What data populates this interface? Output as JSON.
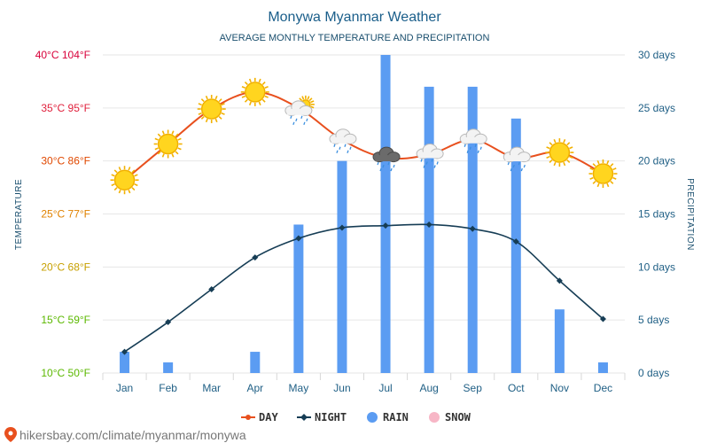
{
  "title": "Monywa Myanmar Weather",
  "subtitle": "AVERAGE MONTHLY TEMPERATURE AND PRECIPITATION",
  "source": "hikersbay.com/climate/myanmar/monywa",
  "colors": {
    "day": "#e8501e",
    "night": "#163d55",
    "rain": "#5b9cf2",
    "snow": "#f7b6c6",
    "grid": "#e6e6e6",
    "left_ticks": [
      "#5bb800",
      "#5bb800",
      "#c7a000",
      "#e08200",
      "#e04800",
      "#e0203c",
      "#d8003a"
    ]
  },
  "chart_data": {
    "type": "line+bar",
    "title": "Monywa Myanmar Weather",
    "subtitle": "AVERAGE MONTHLY TEMPERATURE AND PRECIPITATION",
    "categories": [
      "Jan",
      "Feb",
      "Mar",
      "Apr",
      "May",
      "Jun",
      "Jul",
      "Aug",
      "Sep",
      "Oct",
      "Nov",
      "Dec"
    ],
    "series": [
      {
        "name": "DAY",
        "type": "line",
        "axis": "left",
        "values": [
          28.2,
          31.6,
          34.9,
          36.5,
          35.0,
          32.0,
          30.3,
          30.6,
          32.0,
          30.3,
          30.8,
          28.8
        ]
      },
      {
        "name": "NIGHT",
        "type": "line",
        "axis": "left",
        "values": [
          12.0,
          14.8,
          17.9,
          20.9,
          22.7,
          23.7,
          23.9,
          24.0,
          23.6,
          22.4,
          18.7,
          15.1
        ]
      },
      {
        "name": "RAIN",
        "type": "bar",
        "axis": "right",
        "values": [
          2,
          1,
          0,
          2,
          14,
          20,
          30,
          27,
          27,
          24,
          6,
          1
        ]
      },
      {
        "name": "SNOW",
        "type": "bar",
        "axis": "right",
        "values": [
          0,
          0,
          0,
          0,
          0,
          0,
          0,
          0,
          0,
          0,
          0,
          0
        ]
      }
    ],
    "weather_icons": [
      "sun",
      "sun",
      "sun",
      "sun",
      "sun-cloud-rain",
      "cloud-rain",
      "storm",
      "cloud-rain",
      "cloud-rain",
      "cloud-rain",
      "sun",
      "sun"
    ],
    "left_axis": {
      "title": "TEMPERATURE",
      "ylim": [
        10,
        40
      ],
      "ticks": [
        10,
        15,
        20,
        25,
        30,
        35,
        40
      ],
      "tick_labels": [
        "10°C 50°F",
        "15°C 59°F",
        "20°C 68°F",
        "25°C 77°F",
        "30°C 86°F",
        "35°C 95°F",
        "40°C 104°F"
      ]
    },
    "right_axis": {
      "title": "PRECIPITATION",
      "ylim": [
        0,
        30
      ],
      "ticks": [
        0,
        5,
        10,
        15,
        20,
        25,
        30
      ],
      "tick_labels": [
        "0 days",
        "5 days",
        "10 days",
        "15 days",
        "20 days",
        "25 days",
        "30 days"
      ]
    },
    "grid": true,
    "legend": {
      "position": "bottom",
      "entries": [
        "DAY",
        "NIGHT",
        "RAIN",
        "SNOW"
      ]
    }
  }
}
